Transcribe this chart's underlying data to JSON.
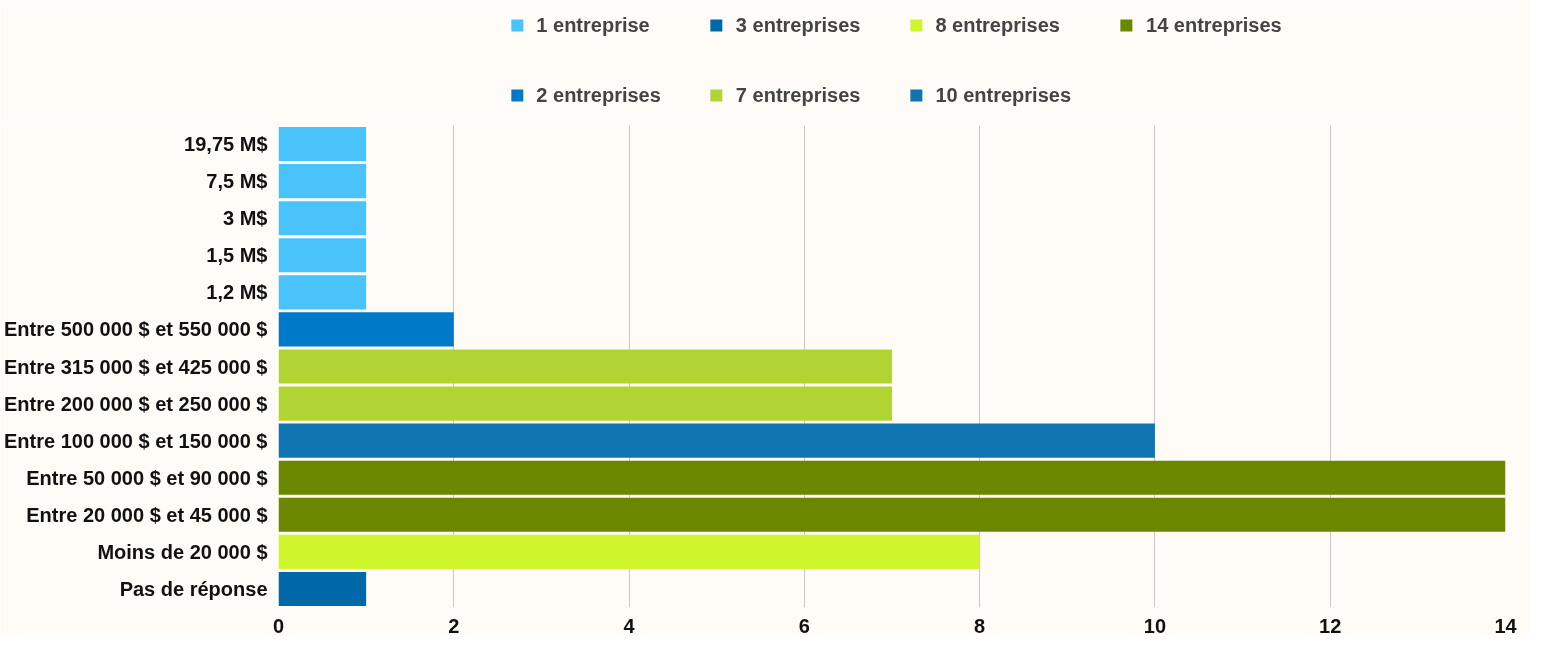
{
  "chart_data": {
    "type": "bar",
    "orientation": "horizontal",
    "categories": [
      "19,75 M$",
      "7,5 M$",
      "3 M$",
      "1,5 M$",
      "1,2 M$",
      "Entre 500 000 $ et 550 000 $",
      "Entre 315 000 $ et 425 000 $",
      "Entre 200 000 $ et 250 000 $",
      "Entre 100 000 $ et 150 000 $",
      "Entre 50 000 $ et 90 000 $",
      "Entre 20 000 $ et 45 000 $",
      "Moins de 20 000 $",
      "Pas de réponse"
    ],
    "series": [
      {
        "name": "1 entreprise",
        "color": "#4ac3fb",
        "values": [
          1,
          1,
          1,
          1,
          1,
          null,
          null,
          null,
          null,
          null,
          null,
          null,
          null
        ]
      },
      {
        "name": "2 entreprises",
        "color": "#0079c8",
        "values": [
          null,
          null,
          null,
          null,
          null,
          2,
          null,
          null,
          null,
          null,
          null,
          null,
          null
        ]
      },
      {
        "name": "3 entreprises",
        "color": "#0068a8",
        "values": [
          null,
          null,
          null,
          null,
          null,
          null,
          null,
          null,
          null,
          null,
          null,
          null,
          1
        ]
      },
      {
        "name": "7 entreprises",
        "color": "#b1d334",
        "values": [
          null,
          null,
          null,
          null,
          null,
          null,
          7,
          7,
          null,
          null,
          null,
          null,
          null
        ]
      },
      {
        "name": "8 entreprises",
        "color": "#cff52c",
        "values": [
          null,
          null,
          null,
          null,
          null,
          null,
          null,
          null,
          null,
          null,
          null,
          8,
          null
        ]
      },
      {
        "name": "10 entreprises",
        "color": "#0f75b1",
        "values": [
          null,
          null,
          null,
          null,
          null,
          null,
          null,
          null,
          10,
          null,
          null,
          null,
          null
        ]
      },
      {
        "name": "14 entreprises",
        "color": "#6b8700",
        "values": [
          null,
          null,
          null,
          null,
          null,
          null,
          null,
          null,
          null,
          14,
          14,
          null,
          null
        ]
      }
    ],
    "xlim": [
      0,
      14
    ],
    "xticks": [
      0,
      2,
      4,
      6,
      8,
      10,
      12,
      14
    ],
    "grid": "x",
    "legend": "top"
  }
}
